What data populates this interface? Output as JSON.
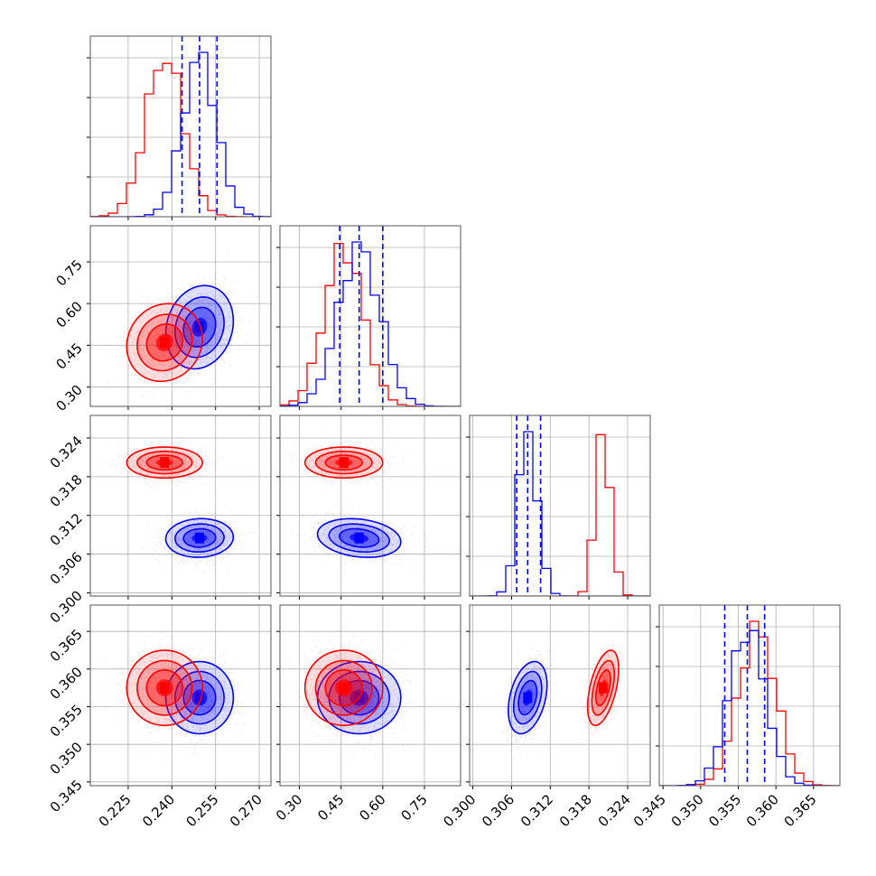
{
  "chart_data": {
    "type": "corner",
    "grid": true,
    "parameters": [
      {
        "ticks": [
          "0.225",
          "0.240",
          "0.255",
          "0.270"
        ],
        "tick_values": [
          0.225,
          0.24,
          0.255,
          0.27
        ],
        "range": [
          0.212,
          0.274
        ]
      },
      {
        "ticks": [
          "0.30",
          "0.45",
          "0.60",
          "0.75"
        ],
        "tick_values": [
          0.3,
          0.45,
          0.6,
          0.75
        ],
        "range": [
          0.23,
          0.88
        ]
      },
      {
        "ticks": [
          "0.300",
          "0.306",
          "0.312",
          "0.318",
          "0.324"
        ],
        "tick_values": [
          0.3,
          0.306,
          0.312,
          0.318,
          0.324
        ],
        "range": [
          0.2995,
          0.3275
        ]
      },
      {
        "ticks": [
          "0.345",
          "0.350",
          "0.355",
          "0.360",
          "0.365"
        ],
        "tick_values": [
          0.345,
          0.35,
          0.355,
          0.36,
          0.365
        ],
        "range": [
          0.3445,
          0.3685
        ]
      }
    ],
    "series": [
      {
        "color": "#0000ff",
        "mean": [
          0.2495,
          0.515,
          0.3085,
          0.3562
        ],
        "sigma": [
          0.0058,
          0.075,
          0.0015,
          0.0024
        ],
        "correlations": {
          "0-1": 0.15,
          "0-2": 0.05,
          "0-3": 0.0,
          "1-2": -0.2,
          "1-3": 0.0,
          "2-3": 0.35
        },
        "quantiles": [
          [
            0.2435,
            0.2495,
            0.2555
          ],
          [
            0.445,
            0.515,
            0.6
          ],
          [
            0.3068,
            0.3085,
            0.3105
          ],
          [
            0.3532,
            0.3562,
            0.3585
          ]
        ]
      },
      {
        "color": "#ff0000",
        "mean": [
          0.2375,
          0.46,
          0.3202,
          0.3575
        ],
        "sigma": [
          0.0065,
          0.07,
          0.0012,
          0.0025
        ],
        "correlations": {
          "0-1": 0.1,
          "0-2": 0.0,
          "0-3": 0.0,
          "1-2": 0.0,
          "1-3": 0.0,
          "2-3": 0.5
        }
      }
    ]
  }
}
